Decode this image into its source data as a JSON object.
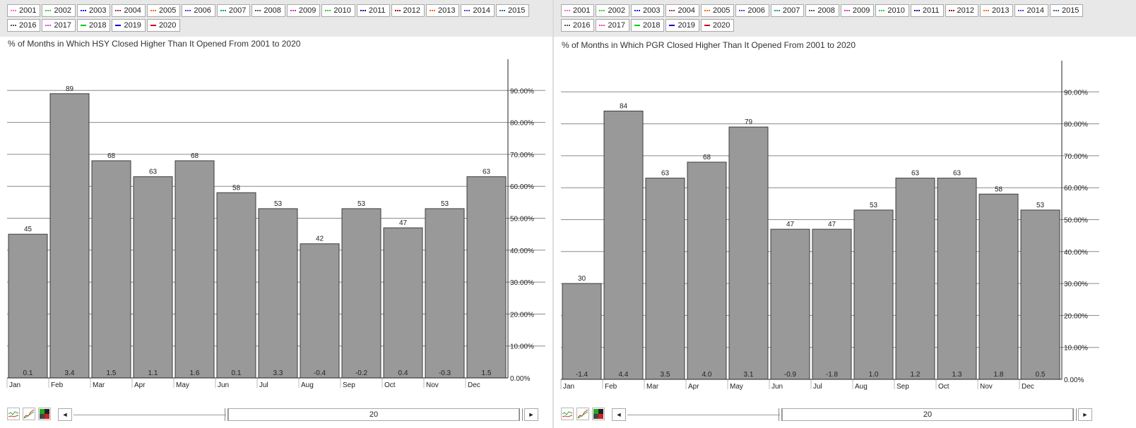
{
  "legend_years": [
    "2001",
    "2002",
    "2003",
    "2004",
    "2005",
    "2006",
    "2007",
    "2008",
    "2009",
    "2010",
    "2011",
    "2012",
    "2013",
    "2014",
    "2015",
    "2016",
    "2017",
    "2018",
    "2019",
    "2020"
  ],
  "legend_colors": [
    "#ff66cc",
    "#33cc33",
    "#1a1aff",
    "#993333",
    "#ff6600",
    "#6633cc",
    "#009999",
    "#555555",
    "#cc33cc",
    "#33cc33",
    "#000099",
    "#990000",
    "#ff6600",
    "#6633cc",
    "#336699",
    "#555555",
    "#ff33cc",
    "#00cc00",
    "#0000cc",
    "#cc0000"
  ],
  "chart_data": [
    {
      "type": "bar",
      "title": "% of Months in Which HSY Closed Higher Than It Opened From 2001 to 2020",
      "categories": [
        "Jan",
        "Feb",
        "Mar",
        "Apr",
        "May",
        "Jun",
        "Jul",
        "Aug",
        "Sep",
        "Oct",
        "Nov",
        "Dec"
      ],
      "values": [
        45,
        89,
        68,
        63,
        68,
        58,
        53,
        42,
        53,
        47,
        53,
        63
      ],
      "value_labels": [
        "45",
        "89",
        "68",
        "63",
        "68",
        "58",
        "53",
        "42",
        "53",
        "47",
        "53",
        "63"
      ],
      "bottom_labels": [
        "0.1",
        "3.4",
        "1.5",
        "1.1",
        "1.6",
        "0.1",
        "3.3",
        "-0.4",
        "-0.2",
        "0.4",
        "-0.3",
        "1.5"
      ],
      "y_ticks": [
        "0.00%",
        "10.00%",
        "20.00%",
        "30.00%",
        "40.00%",
        "50.00%",
        "60.00%",
        "70.00%",
        "80.00%",
        "90.00%"
      ],
      "ylim": [
        0,
        100
      ],
      "grid": true,
      "bar_color": "#999999"
    },
    {
      "type": "bar",
      "title": "% of Months in Which PGR Closed Higher Than It Opened From 2001 to 2020",
      "categories": [
        "Jan",
        "Feb",
        "Mar",
        "Apr",
        "May",
        "Jun",
        "Jul",
        "Aug",
        "Sep",
        "Oct",
        "Nov",
        "Dec"
      ],
      "values": [
        30,
        84,
        63,
        68,
        79,
        47,
        47,
        53,
        63,
        63,
        58,
        53
      ],
      "value_labels": [
        "30",
        "84",
        "63",
        "68",
        "79",
        "47",
        "47",
        "53",
        "63",
        "63",
        "58",
        "53"
      ],
      "bottom_labels": [
        "-1.4",
        "4.4",
        "3.5",
        "4.0",
        "3.1",
        "-0.9",
        "-1.8",
        "1.0",
        "1.2",
        "1.3",
        "1.8",
        "0.5"
      ],
      "y_ticks": [
        "0.00%",
        "10.00%",
        "20.00%",
        "30.00%",
        "40.00%",
        "50.00%",
        "60.00%",
        "70.00%",
        "80.00%",
        "90.00%"
      ],
      "ylim": [
        0,
        100
      ],
      "grid": true,
      "bar_color": "#999999"
    }
  ],
  "footer": {
    "left_arrow": "◄",
    "right_arrow": "►",
    "slider_value": "20",
    "icons": [
      "line-chart-icon",
      "trend-chart-icon",
      "heatmap-icon"
    ]
  }
}
